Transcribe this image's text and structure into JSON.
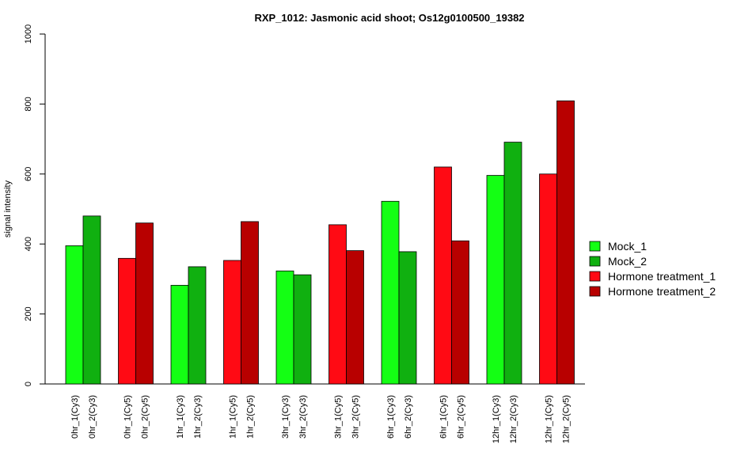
{
  "chart_data": {
    "type": "bar",
    "title": "RXP_1012: Jasmonic acid shoot; Os12g0100500_19382",
    "ylabel": "signal intensity",
    "xlabel": "",
    "ylim": [
      0,
      1000
    ],
    "yticks": [
      0,
      200,
      400,
      600,
      800,
      1000
    ],
    "legend_position": "right",
    "bars": [
      {
        "label": "0hr_1(Cy3)",
        "value": 395,
        "series": "Mock_1"
      },
      {
        "label": "0hr_2(Cy3)",
        "value": 480,
        "series": "Mock_2"
      },
      {
        "label": "0hr_1(Cy5)",
        "value": 359,
        "series": "Hormone treatment_1"
      },
      {
        "label": "0hr_2(Cy5)",
        "value": 460,
        "series": "Hormone treatment_2"
      },
      {
        "label": "1hr_1(Cy3)",
        "value": 282,
        "series": "Mock_1"
      },
      {
        "label": "1hr_2(Cy3)",
        "value": 335,
        "series": "Mock_2"
      },
      {
        "label": "1hr_1(Cy5)",
        "value": 353,
        "series": "Hormone treatment_1"
      },
      {
        "label": "1hr_2(Cy5)",
        "value": 464,
        "series": "Hormone treatment_2"
      },
      {
        "label": "3hr_1(Cy3)",
        "value": 323,
        "series": "Mock_1"
      },
      {
        "label": "3hr_2(Cy3)",
        "value": 312,
        "series": "Mock_2"
      },
      {
        "label": "3hr_1(Cy5)",
        "value": 455,
        "series": "Hormone treatment_1"
      },
      {
        "label": "3hr_2(Cy5)",
        "value": 381,
        "series": "Hormone treatment_2"
      },
      {
        "label": "6hr_1(Cy3)",
        "value": 522,
        "series": "Mock_1"
      },
      {
        "label": "6hr_2(Cy3)",
        "value": 378,
        "series": "Mock_2"
      },
      {
        "label": "6hr_1(Cy5)",
        "value": 620,
        "series": "Hormone treatment_1"
      },
      {
        "label": "6hr_2(Cy5)",
        "value": 409,
        "series": "Hormone treatment_2"
      },
      {
        "label": "12hr_1(Cy3)",
        "value": 596,
        "series": "Mock_1"
      },
      {
        "label": "12hr_2(Cy3)",
        "value": 691,
        "series": "Mock_2"
      },
      {
        "label": "12hr_1(Cy5)",
        "value": 600,
        "series": "Hormone treatment_1"
      },
      {
        "label": "12hr_2(Cy5)",
        "value": 809,
        "series": "Hormone treatment_2"
      }
    ],
    "legend": [
      {
        "name": "Mock_1",
        "color": "#14FF14"
      },
      {
        "name": "Mock_2",
        "color": "#10B010"
      },
      {
        "name": "Hormone treatment_1",
        "color": "#FF0A14"
      },
      {
        "name": "Hormone treatment_2",
        "color": "#B80000"
      }
    ]
  }
}
